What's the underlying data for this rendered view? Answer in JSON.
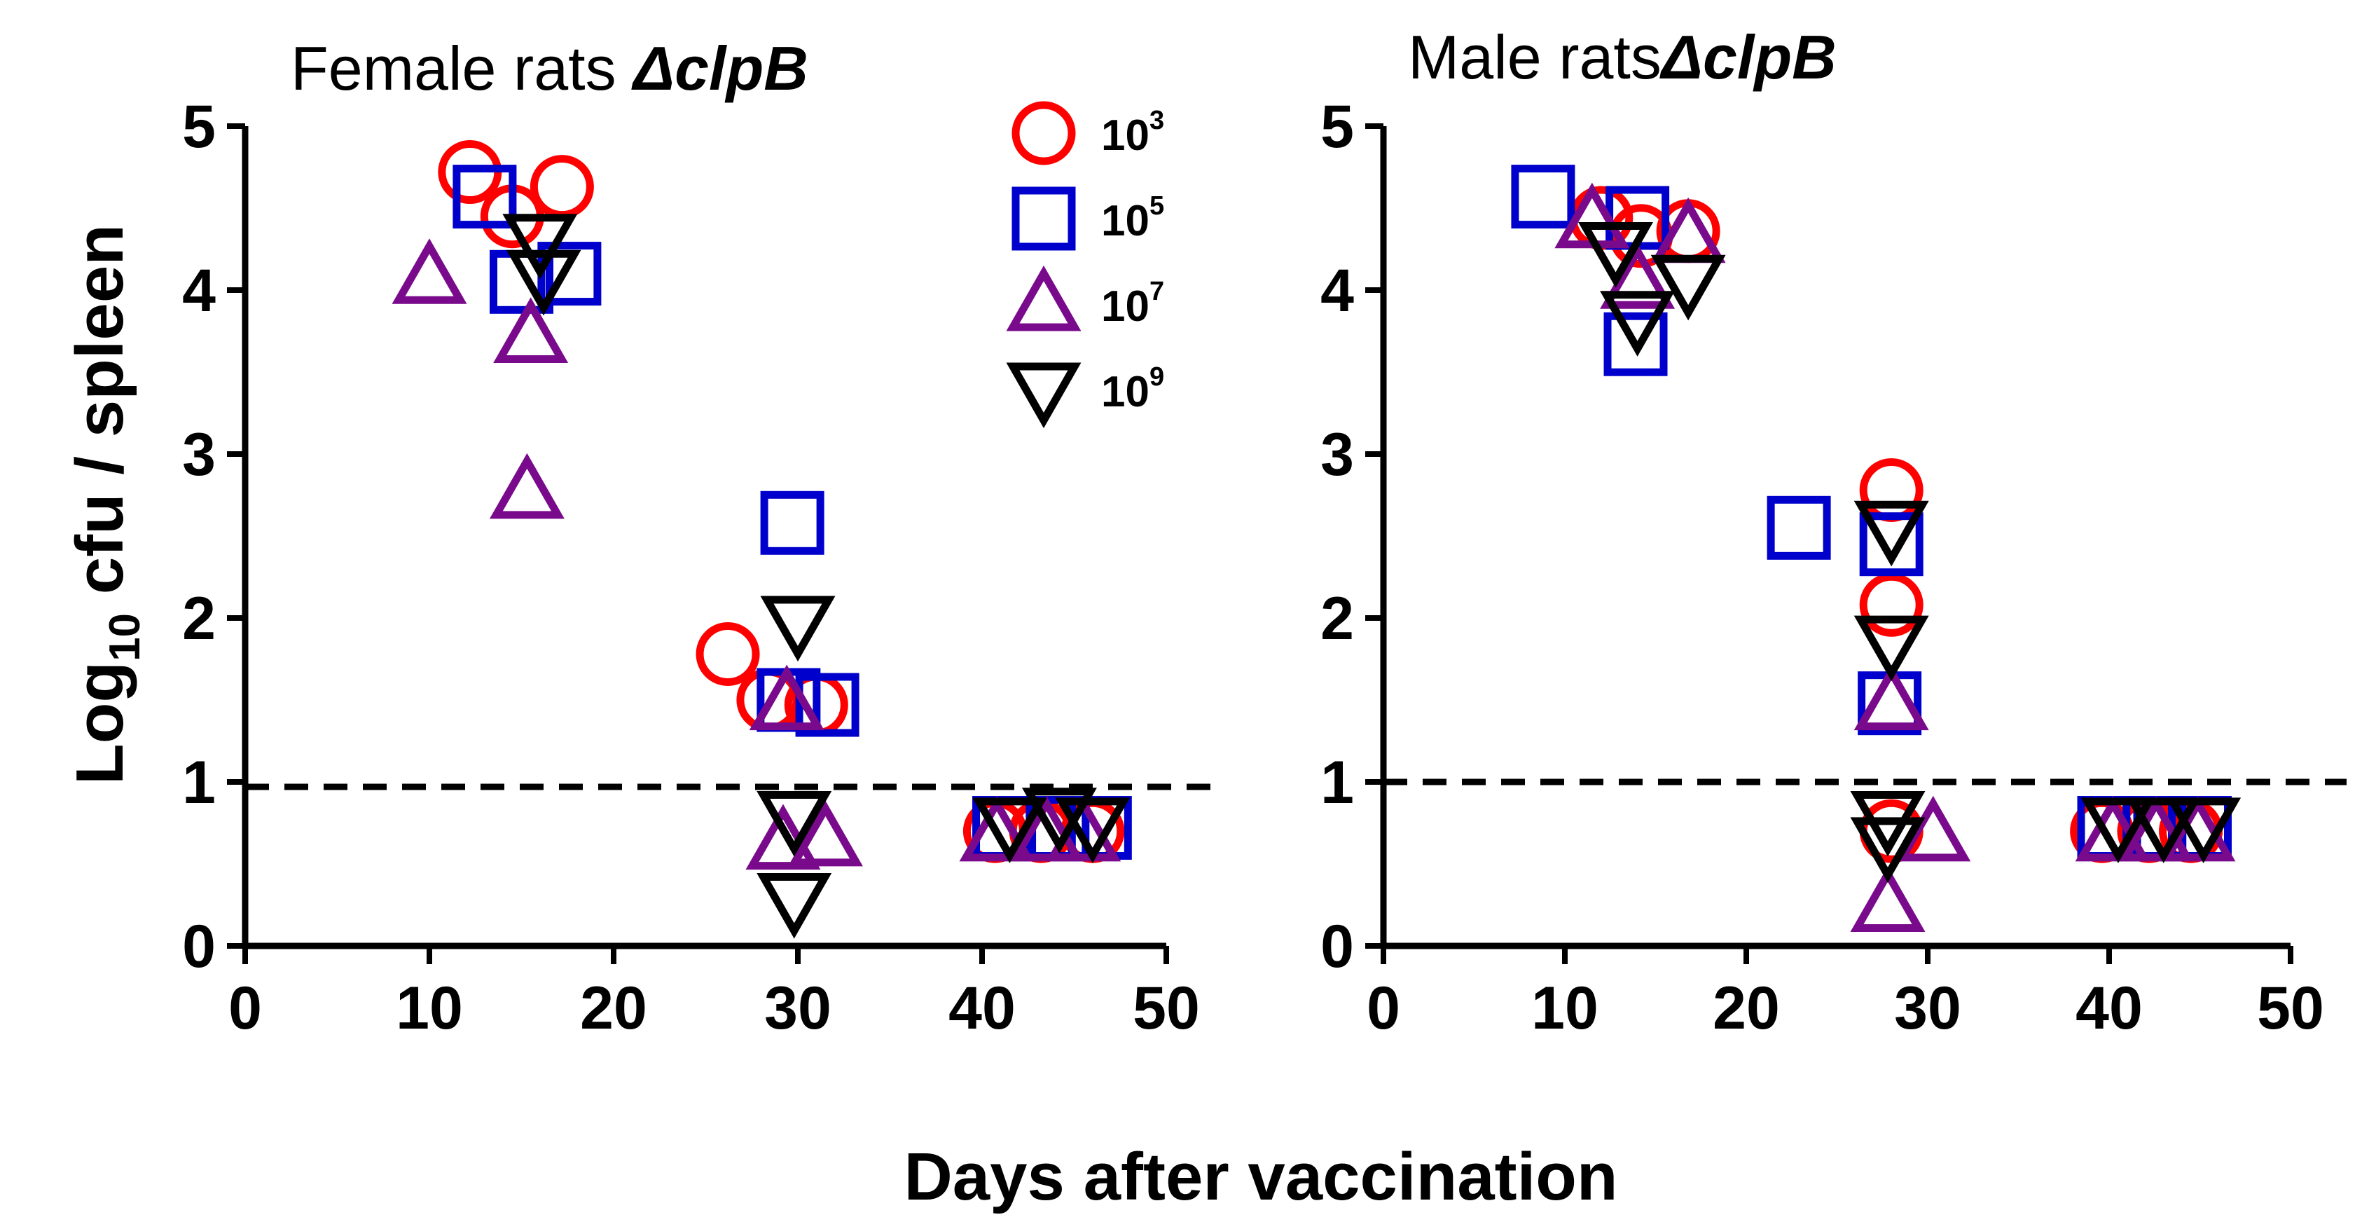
{
  "ylabel_main": "Log",
  "ylabel_sub": "10",
  "ylabel_tail": " cfu / spleen",
  "xlabel": "Days after vaccination",
  "legend": [
    {
      "name": "10",
      "exp": "3",
      "marker": "circle",
      "color": "#ff0000"
    },
    {
      "name": "10",
      "exp": "5",
      "marker": "square",
      "color": "#0000cc"
    },
    {
      "name": "10",
      "exp": "7",
      "marker": "triangle-up",
      "color": "#7a0a8c"
    },
    {
      "name": "10",
      "exp": "9",
      "marker": "triangle-down",
      "color": "#000000"
    }
  ],
  "chart_data": [
    {
      "type": "scatter",
      "title_plain": "Female rats ",
      "title_italic": "ΔclpB",
      "xlabel": "Days after vaccination",
      "ylabel": "Log10 cfu / spleen",
      "xlim": [
        0,
        50
      ],
      "ylim": [
        0,
        5
      ],
      "xticks": [
        0,
        10,
        20,
        30,
        40,
        50
      ],
      "yticks": [
        0,
        1,
        2,
        3,
        4,
        5
      ],
      "reference_line_y": 0.97,
      "series": [
        {
          "name": "10^3",
          "marker": "circle",
          "color": "#ff0000",
          "points": [
            [
              12.2,
              4.72
            ],
            [
              14.5,
              4.45
            ],
            [
              17.2,
              4.63
            ],
            [
              26.2,
              1.78
            ],
            [
              28.4,
              1.5
            ],
            [
              31.0,
              1.47
            ],
            [
              40.7,
              0.7
            ],
            [
              43.2,
              0.7
            ],
            [
              46.0,
              0.7
            ]
          ]
        },
        {
          "name": "10^5",
          "marker": "square",
          "color": "#0000cc",
          "points": [
            [
              13.0,
              4.57
            ],
            [
              15.0,
              4.05
            ],
            [
              17.6,
              4.1
            ],
            [
              29.7,
              2.58
            ],
            [
              29.5,
              1.5
            ],
            [
              31.6,
              1.47
            ],
            [
              41.2,
              0.72
            ],
            [
              44.1,
              0.72
            ],
            [
              46.4,
              0.72
            ]
          ]
        },
        {
          "name": "10^7",
          "marker": "triangle-up",
          "color": "#7a0a8c",
          "points": [
            [
              10.0,
              4.08
            ],
            [
              15.5,
              3.72
            ],
            [
              15.3,
              2.77
            ],
            [
              29.4,
              1.48
            ],
            [
              29.2,
              0.63
            ],
            [
              31.5,
              0.65
            ],
            [
              40.8,
              0.68
            ],
            [
              43.5,
              0.68
            ],
            [
              45.5,
              0.68
            ]
          ]
        },
        {
          "name": "10^9",
          "marker": "triangle-down",
          "color": "#000000",
          "points": [
            [
              16.0,
              4.3
            ],
            [
              16.2,
              4.08
            ],
            [
              30.0,
              1.97
            ],
            [
              29.8,
              0.78
            ],
            [
              29.8,
              0.28
            ],
            [
              41.5,
              0.74
            ],
            [
              44.2,
              0.8
            ],
            [
              46.0,
              0.74
            ]
          ]
        }
      ]
    },
    {
      "type": "scatter",
      "title_plain": "Male rats",
      "title_italic": "ΔclpB",
      "xlabel": "Days after vaccination",
      "ylabel": "Log10 cfu / spleen",
      "xlim": [
        0,
        50
      ],
      "ylim": [
        0,
        5
      ],
      "xticks": [
        0,
        10,
        20,
        30,
        40,
        50
      ],
      "yticks": [
        0,
        1,
        2,
        3,
        4,
        5
      ],
      "reference_line_y": 1.0,
      "series": [
        {
          "name": "10^3",
          "marker": "circle",
          "color": "#ff0000",
          "points": [
            [
              12.0,
              4.44
            ],
            [
              14.2,
              4.33
            ],
            [
              16.8,
              4.36
            ],
            [
              28.0,
              2.78
            ],
            [
              28.0,
              2.08
            ],
            [
              28.0,
              0.7
            ],
            [
              39.6,
              0.7
            ],
            [
              42.2,
              0.7
            ],
            [
              44.5,
              0.7
            ]
          ]
        },
        {
          "name": "10^5",
          "marker": "square",
          "color": "#0000cc",
          "points": [
            [
              8.8,
              4.57
            ],
            [
              14.0,
              4.44
            ],
            [
              13.9,
              3.67
            ],
            [
              22.9,
              2.55
            ],
            [
              28.0,
              2.45
            ],
            [
              27.9,
              1.48
            ],
            [
              40.0,
              0.72
            ],
            [
              42.5,
              0.72
            ],
            [
              45.0,
              0.72
            ]
          ]
        },
        {
          "name": "10^7",
          "marker": "triangle-up",
          "color": "#7a0a8c",
          "points": [
            [
              11.5,
              4.42
            ],
            [
              14.0,
              4.05
            ],
            [
              16.8,
              4.33
            ],
            [
              28.0,
              1.48
            ],
            [
              30.3,
              0.68
            ],
            [
              27.8,
              0.25
            ],
            [
              40.2,
              0.68
            ],
            [
              42.6,
              0.68
            ],
            [
              44.9,
              0.68
            ]
          ]
        },
        {
          "name": "10^9",
          "marker": "triangle-down",
          "color": "#000000",
          "points": [
            [
              12.8,
              4.25
            ],
            [
              14.0,
              3.83
            ],
            [
              16.8,
              4.05
            ],
            [
              28.0,
              2.55
            ],
            [
              28.0,
              1.85
            ],
            [
              27.8,
              0.78
            ],
            [
              27.8,
              0.62
            ],
            [
              40.5,
              0.74
            ],
            [
              43.0,
              0.74
            ],
            [
              45.2,
              0.74
            ]
          ]
        }
      ]
    }
  ]
}
